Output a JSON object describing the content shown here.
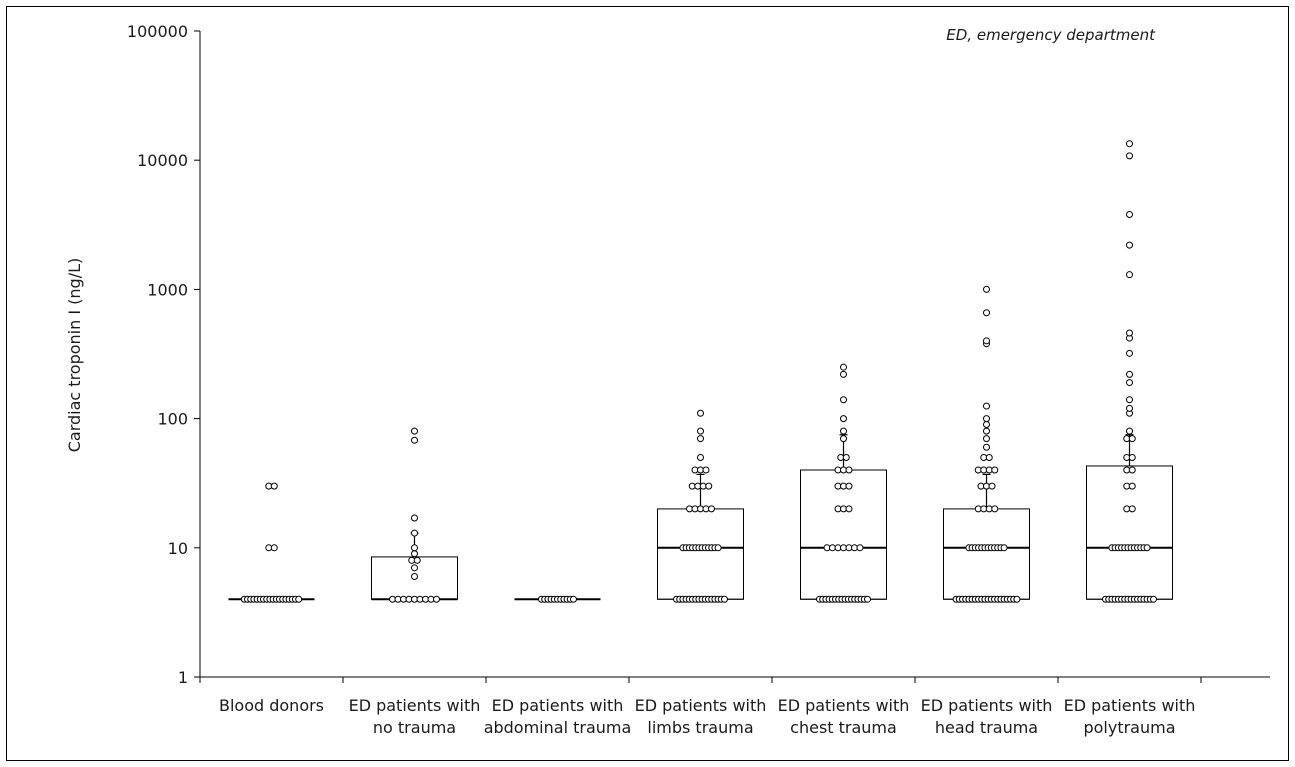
{
  "chart_data": {
    "type": "box",
    "title": "",
    "annotation": "ED, emergency department",
    "ylabel": "Cardiac troponin I (ng/L)",
    "xlabel": "",
    "yscale": "log",
    "ylim": [
      1,
      100000
    ],
    "y_ticks": [
      {
        "value": 1,
        "label": "1"
      },
      {
        "value": 10,
        "label": "10"
      },
      {
        "value": 100,
        "label": "100"
      },
      {
        "value": 1000,
        "label": "1000"
      },
      {
        "value": 10000,
        "label": "10000"
      },
      {
        "value": 100000,
        "label": "100000"
      }
    ],
    "grid": false,
    "categories": [
      {
        "line1": "Blood donors",
        "line2": ""
      },
      {
        "line1": "ED patients with",
        "line2": "no trauma"
      },
      {
        "line1": "ED patients with",
        "line2": "abdominal trauma"
      },
      {
        "line1": "ED patients with",
        "line2": "limbs trauma"
      },
      {
        "line1": "ED patients with",
        "line2": "chest trauma"
      },
      {
        "line1": "ED patients with",
        "line2": "head trauma"
      },
      {
        "line1": "ED patients with",
        "line2": "polytrauma"
      }
    ],
    "boxes": [
      {
        "q1": 4,
        "median": 4,
        "q3": 4,
        "whisker_high": 4
      },
      {
        "q1": 4,
        "median": 4,
        "q3": 8.5,
        "whisker_high": 13
      },
      {
        "q1": 4,
        "median": 4,
        "q3": 4,
        "whisker_high": 4
      },
      {
        "q1": 4,
        "median": 10,
        "q3": 20,
        "whisker_high": 37
      },
      {
        "q1": 4,
        "median": 10,
        "q3": 40,
        "whisker_high": 75
      },
      {
        "q1": 4,
        "median": 10,
        "q3": 20,
        "whisker_high": 37
      },
      {
        "q1": 4,
        "median": 10,
        "q3": 43,
        "whisker_high": 75
      }
    ],
    "points": [
      [
        4,
        4,
        4,
        4,
        4,
        4,
        4,
        4,
        4,
        4,
        4,
        4,
        4,
        4,
        4,
        4,
        4,
        4,
        10,
        10,
        30,
        30
      ],
      [
        4,
        4,
        4,
        4,
        4,
        4,
        4,
        4,
        4,
        6,
        7,
        8,
        8,
        9,
        10,
        13,
        17,
        68,
        80
      ],
      [
        4,
        4,
        4,
        4,
        4,
        4,
        4,
        4,
        4,
        4,
        4
      ],
      [
        4,
        4,
        4,
        4,
        4,
        4,
        4,
        4,
        4,
        4,
        4,
        4,
        4,
        4,
        4,
        4,
        10,
        10,
        10,
        10,
        10,
        10,
        10,
        10,
        10,
        10,
        10,
        10,
        20,
        20,
        20,
        20,
        20,
        30,
        30,
        30,
        30,
        40,
        40,
        40,
        50,
        70,
        80,
        110
      ],
      [
        4,
        4,
        4,
        4,
        4,
        4,
        4,
        4,
        4,
        4,
        4,
        4,
        4,
        4,
        4,
        4,
        10,
        10,
        10,
        10,
        10,
        10,
        10,
        20,
        20,
        20,
        30,
        30,
        30,
        40,
        40,
        40,
        50,
        50,
        70,
        80,
        100,
        140,
        220,
        250
      ],
      [
        4,
        4,
        4,
        4,
        4,
        4,
        4,
        4,
        4,
        4,
        4,
        4,
        4,
        4,
        4,
        4,
        4,
        4,
        4,
        4,
        10,
        10,
        10,
        10,
        10,
        10,
        10,
        10,
        10,
        10,
        10,
        10,
        20,
        20,
        20,
        20,
        30,
        30,
        30,
        40,
        40,
        40,
        40,
        50,
        50,
        60,
        70,
        80,
        90,
        100,
        125,
        380,
        400,
        660,
        1000
      ],
      [
        4,
        4,
        4,
        4,
        4,
        4,
        4,
        4,
        4,
        4,
        4,
        4,
        4,
        4,
        4,
        4,
        10,
        10,
        10,
        10,
        10,
        10,
        10,
        10,
        10,
        10,
        10,
        10,
        20,
        20,
        30,
        30,
        40,
        40,
        50,
        50,
        70,
        70,
        80,
        110,
        120,
        140,
        190,
        220,
        320,
        420,
        460,
        1300,
        2200,
        3800,
        10800,
        13400
      ]
    ]
  }
}
